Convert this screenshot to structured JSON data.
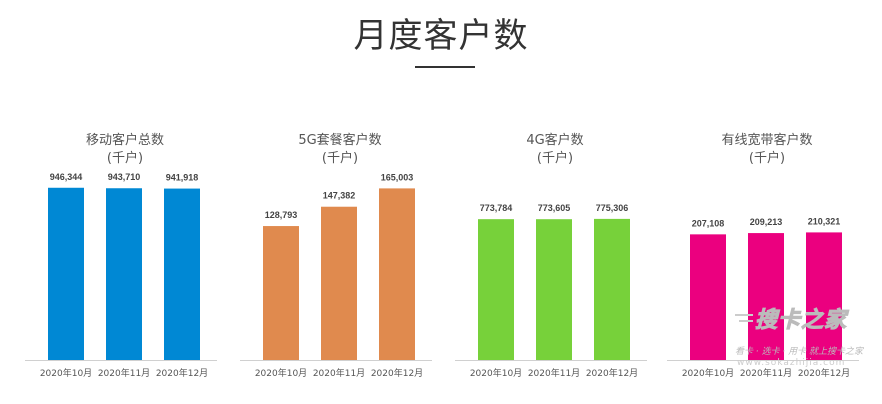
{
  "page": {
    "title": "月度客户数"
  },
  "chart_data": [
    {
      "type": "bar",
      "title": "移动客户总数",
      "unit": "(千户)",
      "color": "#0088d4",
      "categories": [
        "2020年10月",
        "2020年11月",
        "2020年12月"
      ],
      "values": [
        946344,
        943710,
        941918
      ],
      "value_labels": [
        "946,344",
        "943,710",
        "941,918"
      ],
      "ylim": [
        0,
        1000000
      ]
    },
    {
      "type": "bar",
      "title": "5G套餐客户数",
      "unit": "(千户)",
      "color": "#e08a4e",
      "categories": [
        "2020年10月",
        "2020年11月",
        "2020年12月"
      ],
      "values": [
        128793,
        147382,
        165003
      ],
      "value_labels": [
        "128,793",
        "147,382",
        "165,003"
      ],
      "ylim": [
        0,
        175000
      ]
    },
    {
      "type": "bar",
      "title": "4G客户数",
      "unit": "(千户)",
      "color": "#77d13a",
      "categories": [
        "2020年10月",
        "2020年11月",
        "2020年12月"
      ],
      "values": [
        773784,
        773605,
        775306
      ],
      "value_labels": [
        "773,784",
        "773,605",
        "775,306"
      ],
      "ylim": [
        0,
        1000000
      ]
    },
    {
      "type": "bar",
      "title": "有线宽带客户数",
      "unit": "(千户)",
      "color": "#eb007f",
      "categories": [
        "2020年10月",
        "2020年11月",
        "2020年12月"
      ],
      "values": [
        207108,
        209213,
        210321
      ],
      "value_labels": [
        "207,108",
        "209,213",
        "210,321"
      ],
      "ylim": [
        0,
        300000
      ]
    }
  ],
  "watermark": {
    "logo": "搜卡之家",
    "slogan": "看卡 · 选卡 · 用卡 就上搜卡之家",
    "url": "www.sokazhijia.com"
  }
}
